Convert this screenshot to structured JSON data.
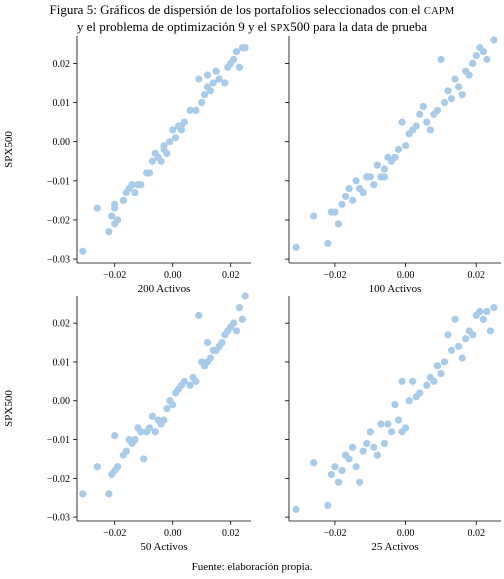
{
  "figure": {
    "title_line1": "Figura 5: Gráficos de dispersión de los portafolios seleccionados con el",
    "title_line1_sc": "CAPM",
    "title_line2_a": "y el problema de optimización 9 y el",
    "title_line2_sc": "SPX",
    "title_line2_b": "500 para la data de prueba",
    "source": "Fuente: elaboración propia."
  },
  "colors": {
    "marker": "#a7cbe8"
  },
  "chart_data": [
    {
      "type": "scatter",
      "xlabel": "200 Activos",
      "ylabel": "SPX500",
      "xlim": [
        -0.033,
        0.027
      ],
      "ylim": [
        -0.031,
        0.027
      ],
      "xticks": [
        -0.02,
        0.0,
        0.02
      ],
      "yticks": [
        -0.03,
        -0.02,
        -0.01,
        0.0,
        0.01,
        0.02
      ],
      "xtick_labels": [
        "−0.02",
        "0.00",
        "0.02"
      ],
      "ytick_labels": [
        "−0.03",
        "−0.02",
        "−0.01",
        "0.00",
        "0.01",
        "0.02"
      ],
      "points": [
        [
          -0.031,
          -0.028
        ],
        [
          -0.026,
          -0.017
        ],
        [
          -0.022,
          -0.023
        ],
        [
          -0.021,
          -0.019
        ],
        [
          -0.02,
          -0.016
        ],
        [
          -0.02,
          -0.017
        ],
        [
          -0.02,
          -0.021
        ],
        [
          -0.019,
          -0.02
        ],
        [
          -0.017,
          -0.015
        ],
        [
          -0.016,
          -0.013
        ],
        [
          -0.015,
          -0.012
        ],
        [
          -0.014,
          -0.011
        ],
        [
          -0.013,
          -0.013
        ],
        [
          -0.012,
          -0.011
        ],
        [
          -0.011,
          -0.011
        ],
        [
          -0.009,
          -0.008
        ],
        [
          -0.008,
          -0.008
        ],
        [
          -0.007,
          -0.005
        ],
        [
          -0.006,
          -0.003
        ],
        [
          -0.005,
          -0.004
        ],
        [
          -0.004,
          -0.005
        ],
        [
          -0.003,
          -0.002
        ],
        [
          -0.003,
          -0.001
        ],
        [
          -0.002,
          -0.003
        ],
        [
          -0.001,
          0.0
        ],
        [
          0.001,
          0.001
        ],
        [
          0.002,
          0.004
        ],
        [
          0.003,
          0.003
        ],
        [
          0.004,
          0.005
        ],
        [
          0.006,
          0.008
        ],
        [
          0.008,
          0.008
        ],
        [
          0.009,
          0.016
        ],
        [
          0.01,
          0.01
        ],
        [
          0.011,
          0.012
        ],
        [
          0.012,
          0.014
        ],
        [
          0.013,
          0.013
        ],
        [
          0.014,
          0.015
        ],
        [
          0.015,
          0.018
        ],
        [
          0.016,
          0.016
        ],
        [
          0.018,
          0.015
        ],
        [
          0.019,
          0.019
        ],
        [
          0.02,
          0.02
        ],
        [
          0.021,
          0.021
        ],
        [
          0.022,
          0.023
        ],
        [
          0.023,
          0.019
        ],
        [
          0.024,
          0.024
        ],
        [
          0.025,
          0.024
        ],
        [
          0.012,
          0.017
        ],
        [
          0.003,
          0.004
        ],
        [
          0.0,
          0.003
        ]
      ]
    },
    {
      "type": "scatter",
      "xlabel": "100 Activos",
      "ylabel": "",
      "xlim": [
        -0.033,
        0.027
      ],
      "ylim": [
        -0.031,
        0.027
      ],
      "xticks": [
        -0.02,
        0.0,
        0.02
      ],
      "yticks": [
        -0.03,
        -0.02,
        -0.01,
        0.0,
        0.01,
        0.02
      ],
      "xtick_labels": [
        "−0.02",
        "0.00",
        "0.02"
      ],
      "ytick_labels": [],
      "points": [
        [
          -0.031,
          -0.027
        ],
        [
          -0.026,
          -0.019
        ],
        [
          -0.022,
          -0.026
        ],
        [
          -0.021,
          -0.018
        ],
        [
          -0.02,
          -0.018
        ],
        [
          -0.019,
          -0.021
        ],
        [
          -0.018,
          -0.016
        ],
        [
          -0.017,
          -0.014
        ],
        [
          -0.016,
          -0.012
        ],
        [
          -0.015,
          -0.015
        ],
        [
          -0.014,
          -0.01
        ],
        [
          -0.013,
          -0.012
        ],
        [
          -0.012,
          -0.013
        ],
        [
          -0.011,
          -0.009
        ],
        [
          -0.01,
          -0.009
        ],
        [
          -0.009,
          -0.011
        ],
        [
          -0.008,
          -0.006
        ],
        [
          -0.007,
          -0.009
        ],
        [
          -0.006,
          -0.007
        ],
        [
          -0.005,
          -0.004
        ],
        [
          -0.004,
          -0.005
        ],
        [
          -0.003,
          -0.004
        ],
        [
          -0.002,
          -0.002
        ],
        [
          -0.001,
          0.005
        ],
        [
          0.0,
          -0.001
        ],
        [
          0.001,
          0.002
        ],
        [
          0.002,
          0.003
        ],
        [
          0.003,
          0.004
        ],
        [
          0.004,
          0.007
        ],
        [
          0.006,
          0.005
        ],
        [
          0.007,
          0.003
        ],
        [
          0.008,
          0.007
        ],
        [
          0.009,
          0.008
        ],
        [
          0.01,
          0.021
        ],
        [
          0.011,
          0.01
        ],
        [
          0.012,
          0.013
        ],
        [
          0.013,
          0.011
        ],
        [
          0.014,
          0.016
        ],
        [
          0.015,
          0.014
        ],
        [
          0.016,
          0.012
        ],
        [
          0.017,
          0.018
        ],
        [
          0.018,
          0.017
        ],
        [
          0.019,
          0.02
        ],
        [
          0.02,
          0.022
        ],
        [
          0.021,
          0.024
        ],
        [
          0.022,
          0.023
        ],
        [
          0.025,
          0.026
        ],
        [
          0.023,
          0.021
        ],
        [
          -0.006,
          -0.009
        ],
        [
          0.005,
          0.009
        ]
      ]
    },
    {
      "type": "scatter",
      "xlabel": "50 Activos",
      "ylabel": "SPX500",
      "xlim": [
        -0.033,
        0.027
      ],
      "ylim": [
        -0.031,
        0.027
      ],
      "xticks": [
        -0.02,
        0.0,
        0.02
      ],
      "yticks": [
        -0.03,
        -0.02,
        -0.01,
        0.0,
        0.01,
        0.02
      ],
      "xtick_labels": [
        "−0.02",
        "0.00",
        "0.02"
      ],
      "ytick_labels": [
        "−0.03",
        "−0.02",
        "−0.01",
        "0.00",
        "0.01",
        "0.02"
      ],
      "points": [
        [
          -0.031,
          -0.024
        ],
        [
          -0.026,
          -0.017
        ],
        [
          -0.022,
          -0.024
        ],
        [
          -0.021,
          -0.019
        ],
        [
          -0.02,
          -0.009
        ],
        [
          -0.02,
          -0.018
        ],
        [
          -0.019,
          -0.017
        ],
        [
          -0.017,
          -0.014
        ],
        [
          -0.016,
          -0.013
        ],
        [
          -0.015,
          -0.01
        ],
        [
          -0.014,
          -0.011
        ],
        [
          -0.013,
          -0.01
        ],
        [
          -0.012,
          -0.007
        ],
        [
          -0.011,
          -0.008
        ],
        [
          -0.01,
          -0.015
        ],
        [
          -0.009,
          -0.008
        ],
        [
          -0.008,
          -0.007
        ],
        [
          -0.007,
          -0.004
        ],
        [
          -0.006,
          -0.008
        ],
        [
          -0.005,
          -0.005
        ],
        [
          -0.004,
          -0.006
        ],
        [
          -0.003,
          -0.005
        ],
        [
          -0.002,
          -0.002
        ],
        [
          -0.001,
          0.0
        ],
        [
          0.0,
          -0.001
        ],
        [
          0.001,
          0.002
        ],
        [
          0.002,
          0.003
        ],
        [
          0.003,
          0.004
        ],
        [
          0.004,
          0.005
        ],
        [
          0.006,
          0.004
        ],
        [
          0.007,
          0.006
        ],
        [
          0.008,
          0.005
        ],
        [
          0.009,
          0.022
        ],
        [
          0.01,
          0.01
        ],
        [
          0.011,
          0.009
        ],
        [
          0.012,
          0.01
        ],
        [
          0.013,
          0.011
        ],
        [
          0.014,
          0.013
        ],
        [
          0.015,
          0.013
        ],
        [
          0.016,
          0.014
        ],
        [
          0.017,
          0.015
        ],
        [
          0.018,
          0.017
        ],
        [
          0.019,
          0.018
        ],
        [
          0.02,
          0.019
        ],
        [
          0.021,
          0.02
        ],
        [
          0.022,
          0.018
        ],
        [
          0.023,
          0.024
        ],
        [
          0.024,
          0.021
        ],
        [
          0.025,
          0.027
        ],
        [
          0.012,
          0.015
        ]
      ]
    },
    {
      "type": "scatter",
      "xlabel": "25 Activos",
      "ylabel": "",
      "xlim": [
        -0.033,
        0.027
      ],
      "ylim": [
        -0.031,
        0.027
      ],
      "xticks": [
        -0.02,
        0.0,
        0.02
      ],
      "yticks": [
        -0.03,
        -0.02,
        -0.01,
        0.0,
        0.01,
        0.02
      ],
      "xtick_labels": [
        "−0.02",
        "0.00",
        "0.02"
      ],
      "ytick_labels": [],
      "points": [
        [
          -0.031,
          -0.028
        ],
        [
          -0.026,
          -0.016
        ],
        [
          -0.022,
          -0.027
        ],
        [
          -0.021,
          -0.019
        ],
        [
          -0.02,
          -0.017
        ],
        [
          -0.019,
          -0.021
        ],
        [
          -0.018,
          -0.018
        ],
        [
          -0.017,
          -0.014
        ],
        [
          -0.016,
          -0.015
        ],
        [
          -0.015,
          -0.012
        ],
        [
          -0.014,
          -0.017
        ],
        [
          -0.013,
          -0.021
        ],
        [
          -0.012,
          -0.013
        ],
        [
          -0.011,
          -0.011
        ],
        [
          -0.01,
          -0.008
        ],
        [
          -0.009,
          -0.012
        ],
        [
          -0.008,
          -0.014
        ],
        [
          -0.007,
          -0.006
        ],
        [
          -0.006,
          -0.011
        ],
        [
          -0.005,
          -0.006
        ],
        [
          -0.004,
          -0.008
        ],
        [
          -0.003,
          -0.001
        ],
        [
          -0.002,
          -0.005
        ],
        [
          -0.001,
          0.005
        ],
        [
          0.0,
          -0.007
        ],
        [
          0.001,
          0.0
        ],
        [
          0.002,
          0.005
        ],
        [
          0.003,
          0.001
        ],
        [
          0.004,
          0.002
        ],
        [
          0.006,
          0.004
        ],
        [
          0.007,
          0.006
        ],
        [
          0.008,
          0.005
        ],
        [
          0.009,
          0.009
        ],
        [
          0.01,
          0.007
        ],
        [
          0.011,
          0.01
        ],
        [
          0.012,
          0.017
        ],
        [
          0.013,
          0.013
        ],
        [
          0.014,
          0.021
        ],
        [
          0.015,
          0.014
        ],
        [
          0.016,
          0.011
        ],
        [
          0.017,
          0.016
        ],
        [
          0.018,
          0.018
        ],
        [
          0.019,
          0.017
        ],
        [
          0.02,
          0.022
        ],
        [
          0.021,
          0.023
        ],
        [
          0.022,
          0.021
        ],
        [
          0.023,
          0.023
        ],
        [
          0.024,
          0.018
        ],
        [
          0.025,
          0.024
        ],
        [
          -0.001,
          -0.008
        ]
      ]
    }
  ]
}
